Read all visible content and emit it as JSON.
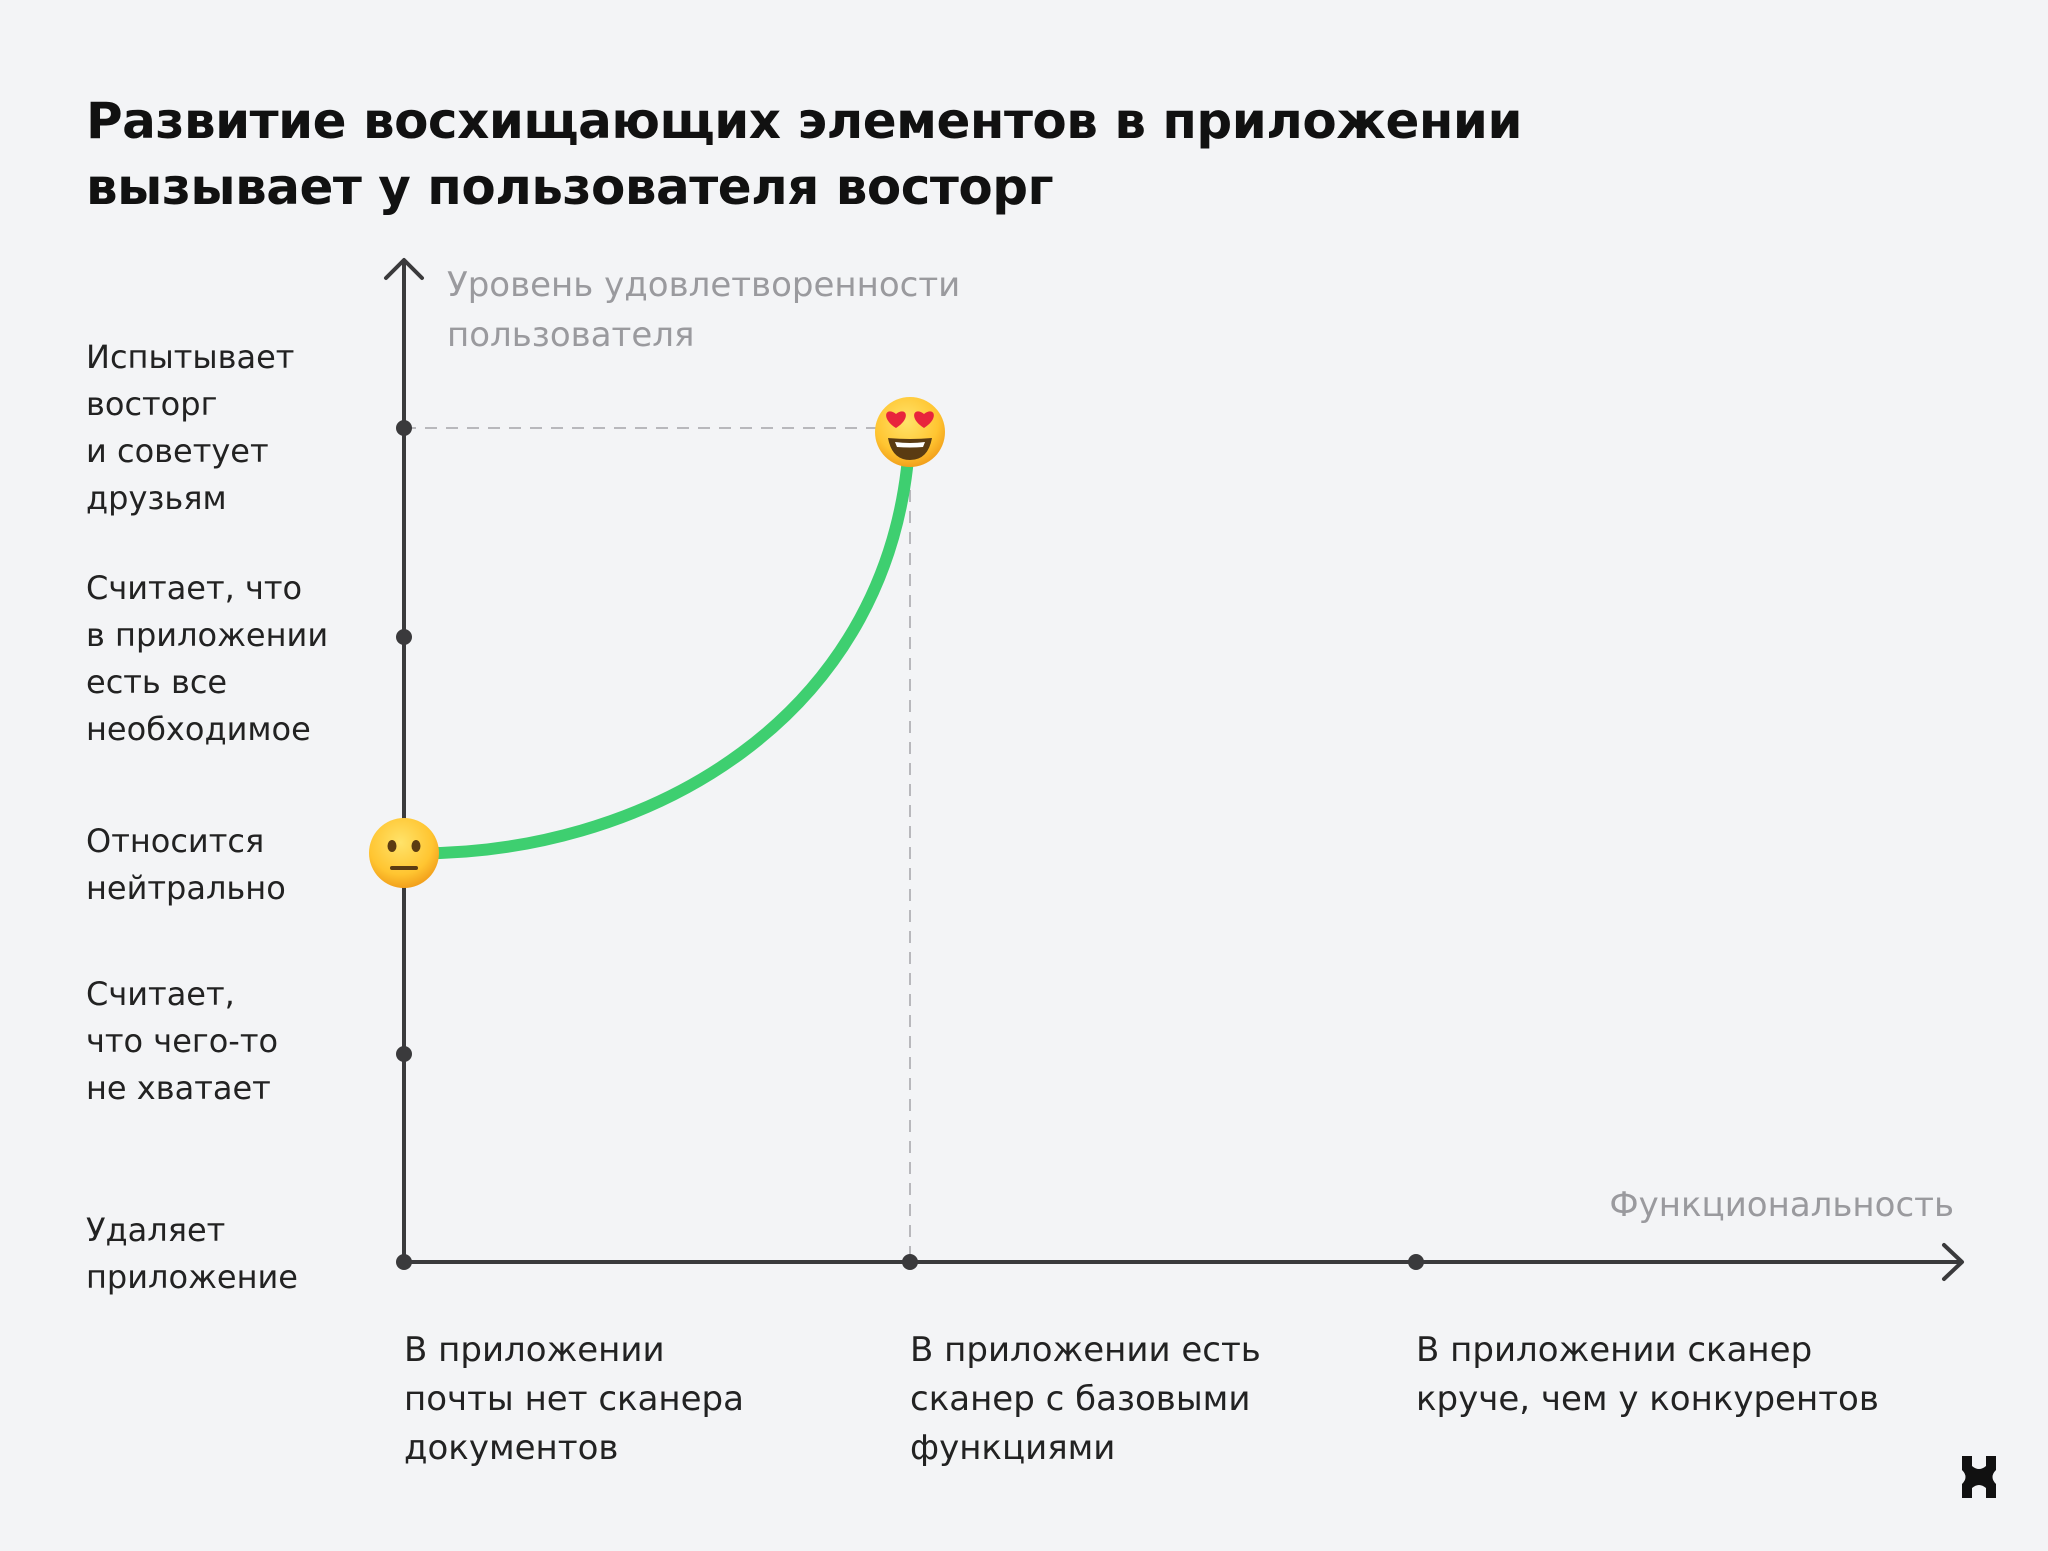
{
  "title_lines": [
    "Развитие восхищающих элементов в приложении",
    "вызывает у пользователя восторг"
  ],
  "y_axis": {
    "title_lines": [
      "Уровень удовлетворенности",
      "пользователя"
    ],
    "levels": [
      {
        "lines": [
          "Удаляет",
          "приложение"
        ]
      },
      {
        "lines": [
          "Считает,",
          "что чего-то",
          "не хватает"
        ]
      },
      {
        "lines": [
          "Относится",
          "нейтрально"
        ]
      },
      {
        "lines": [
          "Считает, что",
          "в приложении",
          "есть все",
          "необходимое"
        ]
      },
      {
        "lines": [
          "Испытывает",
          "восторг",
          "и советует",
          "друзьям"
        ]
      }
    ]
  },
  "x_axis": {
    "title": "Функциональность",
    "levels": [
      {
        "lines": [
          "В приложении",
          "почты нет сканера",
          "документов"
        ]
      },
      {
        "lines": [
          "В приложении есть",
          "сканер с базовыми",
          "функциями"
        ]
      },
      {
        "lines": [
          "В приложении сканер",
          "круче, чем у конкурентов"
        ]
      }
    ]
  },
  "curve": {
    "color": "#3ecf70",
    "start": {
      "x_level": 0,
      "y_level": 2,
      "emoji": "neutral-face-icon"
    },
    "end": {
      "x_level": 1,
      "y_level": 4,
      "emoji": "heart-eyes-face-icon"
    }
  },
  "colors": {
    "background": "#f3f4f6",
    "axis": "#3a3a3c",
    "guide": "#b8b8bc",
    "muted_text": "#9a9a9e"
  }
}
